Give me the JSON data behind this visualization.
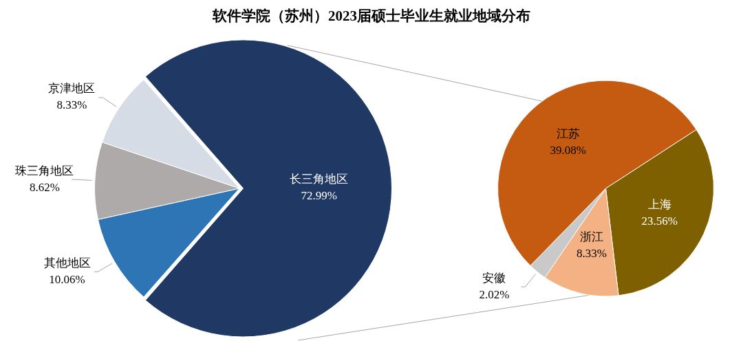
{
  "chart_data": [
    {
      "type": "pie",
      "title": "软件学院（苏州）2023届硕士毕业生就业地域分布",
      "categories": [
        "长三角地区",
        "其他地区",
        "珠三角地区",
        "京津地区"
      ],
      "values": [
        72.99,
        10.06,
        8.62,
        8.33
      ],
      "colors": [
        "#203864",
        "#2e75b6",
        "#aeaaaa",
        "#d6dce5"
      ],
      "value_labels": [
        "72.99%",
        "10.06%",
        "8.62%",
        "8.33%"
      ],
      "legend": false
    },
    {
      "type": "pie",
      "categories": [
        "上海",
        "浙江",
        "安徽",
        "江苏"
      ],
      "values": [
        23.56,
        8.33,
        2.02,
        39.08
      ],
      "colors": [
        "#7f6000",
        "#f4b183",
        "#c9c9c9",
        "#c55a11"
      ],
      "value_labels": [
        "23.56%",
        "8.33%",
        "2.02%",
        "39.08%"
      ],
      "legend": false
    }
  ]
}
